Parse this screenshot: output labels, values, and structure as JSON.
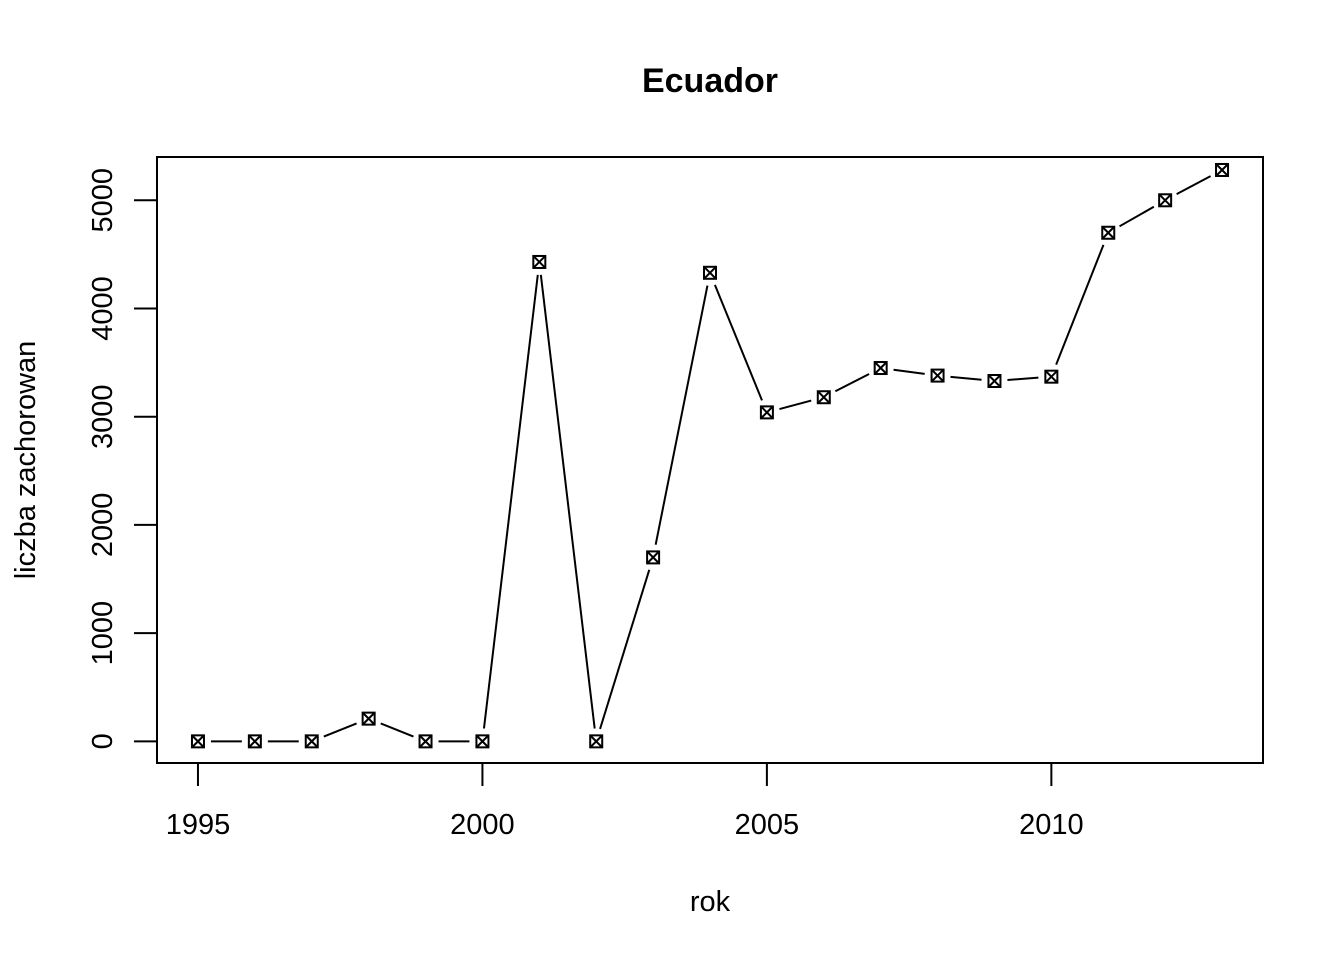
{
  "chart_data": {
    "type": "line",
    "title": "Ecuador",
    "xlabel": "rok",
    "ylabel": "liczba zachorowan",
    "xlim": [
      1994.28,
      2013.72
    ],
    "ylim": [
      -200,
      5400
    ],
    "x_ticks": [
      "1995",
      "2000",
      "2005",
      "2010"
    ],
    "y_ticks": [
      "0",
      "1000",
      "2000",
      "3000",
      "4000",
      "5000"
    ],
    "x_tick_values": [
      1995,
      2000,
      2005,
      2010
    ],
    "y_tick_values": [
      0,
      1000,
      2000,
      3000,
      4000,
      5000
    ],
    "grid": false,
    "marker": "boxed-x",
    "line_style": "overplotted (type b)",
    "color": "#000000",
    "x": [
      1995,
      1996,
      1997,
      1998,
      1999,
      2000,
      2001,
      2002,
      2003,
      2004,
      2005,
      2006,
      2007,
      2008,
      2009,
      2010,
      2011,
      2012,
      2013
    ],
    "values": [
      0,
      0,
      0,
      210,
      0,
      0,
      4430,
      0,
      1700,
      4330,
      3040,
      3180,
      3450,
      3380,
      3330,
      3370,
      4700,
      5000,
      5280
    ]
  }
}
